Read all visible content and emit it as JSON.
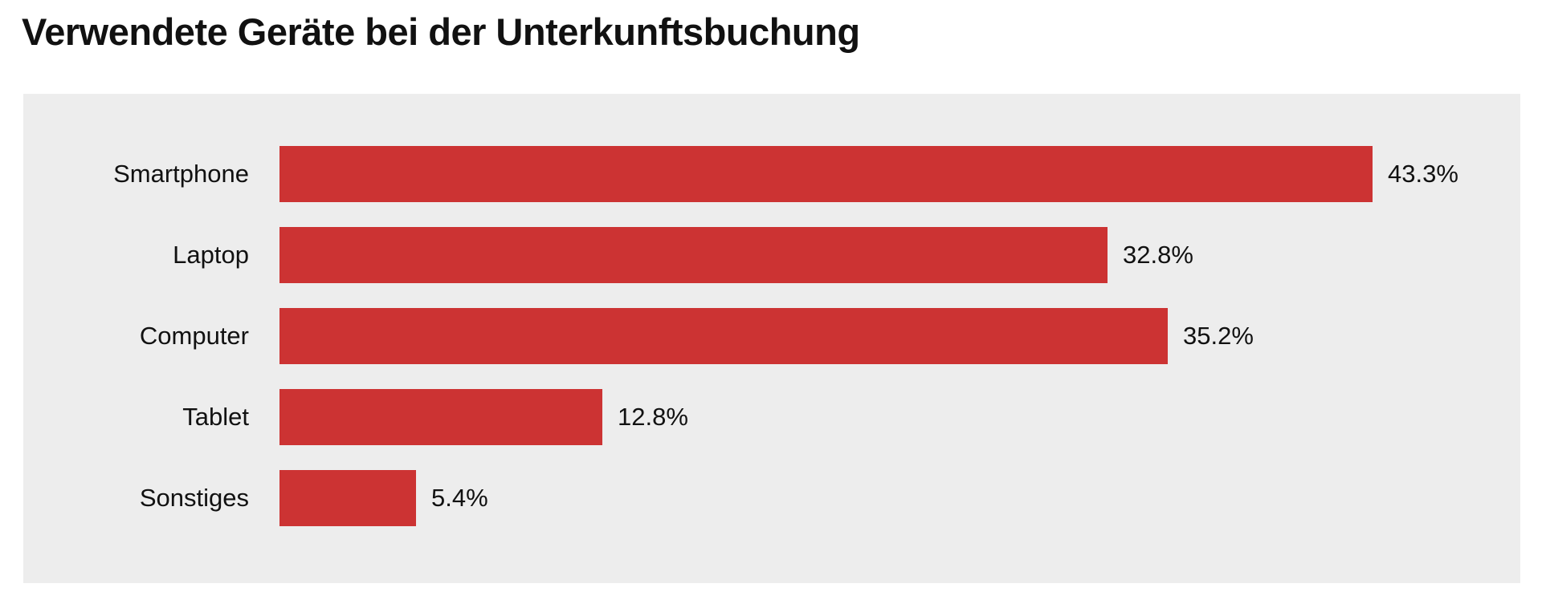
{
  "chart": {
    "title": "Verwendete Geräte bei der Unterkunftsbuchung",
    "panel_bg": "#ededed",
    "bar_color": "#cc3333",
    "text_color": "#111111",
    "bars": [
      {
        "label": "Smartphone",
        "value": 43.3,
        "value_label": "43.3%"
      },
      {
        "label": "Laptop",
        "value": 32.8,
        "value_label": "32.8%"
      },
      {
        "label": "Computer",
        "value": 35.2,
        "value_label": "35.2%"
      },
      {
        "label": "Tablet",
        "value": 12.8,
        "value_label": "12.8%"
      },
      {
        "label": "Sonstiges",
        "value": 5.4,
        "value_label": "5.4%"
      }
    ]
  },
  "chart_data": {
    "type": "bar",
    "orientation": "horizontal",
    "title": "Verwendete Geräte bei der Unterkunftsbuchung",
    "categories": [
      "Smartphone",
      "Laptop",
      "Computer",
      "Tablet",
      "Sonstiges"
    ],
    "values": [
      43.3,
      32.8,
      35.2,
      12.8,
      5.4
    ],
    "data_labels": [
      "43.3%",
      "32.8%",
      "35.2%",
      "12.8%",
      "5.4%"
    ],
    "value_unit": "%",
    "xlim": [
      0,
      49
    ],
    "grid": false,
    "legend": false,
    "axis_ticks": false,
    "bar_color": "#cc3333",
    "plot_background": "#ededed",
    "page_background": "#ffffff"
  }
}
